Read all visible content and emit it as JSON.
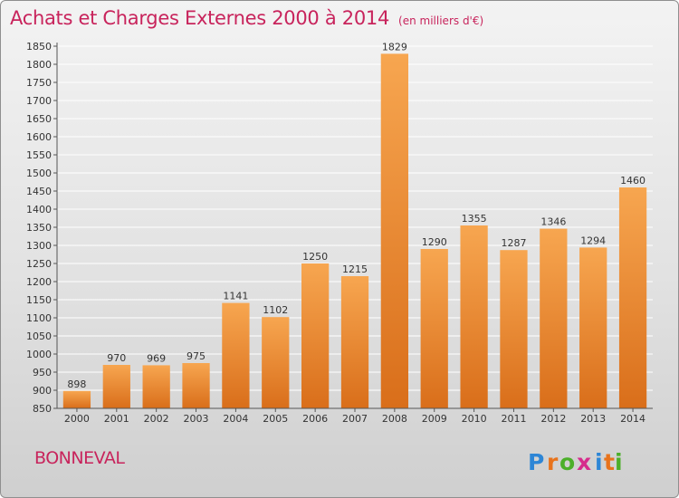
{
  "title": "Achats et Charges Externes 2000 à 2014",
  "unit": "(en milliers d'€)",
  "location": "BONNEVAL",
  "logo": {
    "text": "Proxiti",
    "letters": [
      "P",
      "r",
      "o",
      "x",
      "i",
      "t",
      "i"
    ],
    "colors": [
      "#2e86d6",
      "#e8731c",
      "#4caf2a",
      "#d62c8c",
      "#2e86d6",
      "#e8731c",
      "#4caf2a"
    ]
  },
  "colors": {
    "bar_light": "#f7a650",
    "bar_dark": "#d96e1a",
    "title": "#c8245c"
  },
  "chart_data": {
    "type": "bar",
    "title": "Achats et Charges Externes 2000 à 2014",
    "subtitle": "(en milliers d'€)",
    "categories": [
      "2000",
      "2001",
      "2002",
      "2003",
      "2004",
      "2005",
      "2006",
      "2007",
      "2008",
      "2009",
      "2010",
      "2011",
      "2012",
      "2013",
      "2014"
    ],
    "values": [
      898,
      970,
      969,
      975,
      1141,
      1102,
      1250,
      1215,
      1829,
      1290,
      1355,
      1287,
      1346,
      1294,
      1460
    ],
    "ylim": [
      850,
      1850
    ],
    "yticks": [
      850,
      900,
      950,
      1000,
      1050,
      1100,
      1150,
      1200,
      1250,
      1300,
      1350,
      1400,
      1450,
      1500,
      1550,
      1600,
      1650,
      1700,
      1750,
      1800,
      1850
    ],
    "grid": true,
    "xlabel": "",
    "ylabel": ""
  }
}
